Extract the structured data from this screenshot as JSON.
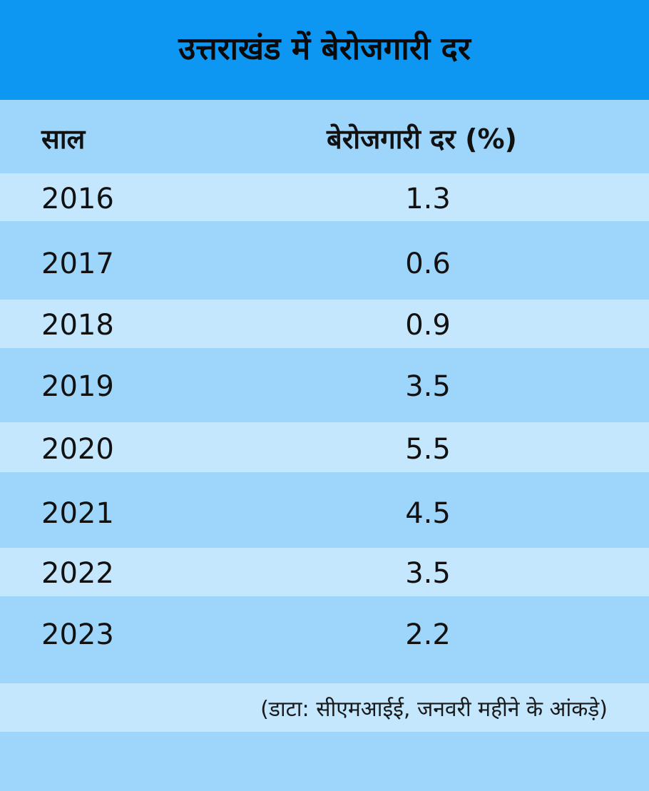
{
  "title": "उत्तराखंड में बेरोजगारी दर",
  "chart_data": {
    "type": "table",
    "title": "उत्तराखंड में बेरोजगारी दर",
    "columns": [
      "साल",
      "बेरोजगारी दर (%)"
    ],
    "rows": [
      {
        "year": "2016",
        "rate": "1.3"
      },
      {
        "year": "2017",
        "rate": "0.6"
      },
      {
        "year": "2018",
        "rate": "0.9"
      },
      {
        "year": "2019",
        "rate": "3.5"
      },
      {
        "year": "2020",
        "rate": "5.5"
      },
      {
        "year": "2021",
        "rate": "4.5"
      },
      {
        "year": "2022",
        "rate": "3.5"
      },
      {
        "year": "2023",
        "rate": "2.2"
      }
    ],
    "source": "(डाटा: सीएमआईई, जनवरी महीने के आंकड़े)"
  },
  "colors": {
    "title_bar": "#0e97f2",
    "row_light": "#c4e7fd",
    "row_dark": "#9ed5fb"
  }
}
